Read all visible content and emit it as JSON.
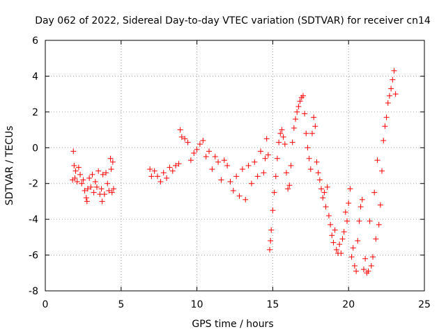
{
  "chart_data": {
    "type": "scatter",
    "title": "Day 062 of 2022, Sidereal Day-to-day VTEC variation (SDTVAR) for receiver cn14",
    "xlabel": "GPS time / hours",
    "ylabel": "SDTVAR / TECUs",
    "xlim": [
      0,
      25
    ],
    "ylim": [
      -8,
      6
    ],
    "xticks": [
      0,
      5,
      10,
      15,
      20,
      25
    ],
    "yticks": [
      -8,
      -6,
      -4,
      -2,
      0,
      2,
      4,
      6
    ],
    "grid": true,
    "marker": "plus",
    "color": "#ff0000",
    "points": [
      [
        1.8,
        -1.8
      ],
      [
        1.85,
        -0.2
      ],
      [
        1.9,
        -1.0
      ],
      [
        1.95,
        -1.7
      ],
      [
        2.0,
        -1.3
      ],
      [
        2.1,
        -1.9
      ],
      [
        2.2,
        -1.1
      ],
      [
        2.3,
        -1.5
      ],
      [
        2.4,
        -2.0
      ],
      [
        2.5,
        -1.8
      ],
      [
        2.6,
        -2.4
      ],
      [
        2.7,
        -2.8
      ],
      [
        2.75,
        -3.0
      ],
      [
        2.8,
        -2.3
      ],
      [
        2.9,
        -1.7
      ],
      [
        3.0,
        -2.2
      ],
      [
        3.1,
        -1.5
      ],
      [
        3.2,
        -2.5
      ],
      [
        3.3,
        -1.9
      ],
      [
        3.4,
        -2.2
      ],
      [
        3.5,
        -1.3
      ],
      [
        3.6,
        -2.6
      ],
      [
        3.7,
        -2.3
      ],
      [
        3.75,
        -3.0
      ],
      [
        3.8,
        -1.5
      ],
      [
        3.9,
        -2.6
      ],
      [
        4.0,
        -1.4
      ],
      [
        4.1,
        -2.0
      ],
      [
        4.2,
        -2.4
      ],
      [
        4.3,
        -0.6
      ],
      [
        4.35,
        -1.2
      ],
      [
        4.4,
        -2.5
      ],
      [
        4.45,
        -0.8
      ],
      [
        4.5,
        -2.3
      ],
      [
        6.9,
        -1.2
      ],
      [
        7.0,
        -1.6
      ],
      [
        7.2,
        -1.3
      ],
      [
        7.4,
        -1.6
      ],
      [
        7.6,
        -1.9
      ],
      [
        7.8,
        -1.4
      ],
      [
        8.0,
        -1.7
      ],
      [
        8.2,
        -1.1
      ],
      [
        8.4,
        -1.3
      ],
      [
        8.6,
        -1.0
      ],
      [
        8.8,
        -0.9
      ],
      [
        8.9,
        1.0
      ],
      [
        9.0,
        0.6
      ],
      [
        9.2,
        0.5
      ],
      [
        9.4,
        0.3
      ],
      [
        9.6,
        -0.7
      ],
      [
        9.8,
        -0.3
      ],
      [
        10.0,
        -0.1
      ],
      [
        10.2,
        0.2
      ],
      [
        10.4,
        0.4
      ],
      [
        10.6,
        -0.5
      ],
      [
        10.8,
        -0.2
      ],
      [
        11.0,
        -1.2
      ],
      [
        11.2,
        -0.5
      ],
      [
        11.4,
        -0.8
      ],
      [
        11.6,
        -1.8
      ],
      [
        11.8,
        -0.7
      ],
      [
        12.0,
        -1.0
      ],
      [
        12.2,
        -1.9
      ],
      [
        12.4,
        -2.4
      ],
      [
        12.6,
        -1.6
      ],
      [
        12.8,
        -2.7
      ],
      [
        13.0,
        -1.2
      ],
      [
        13.2,
        -2.9
      ],
      [
        13.4,
        -1.0
      ],
      [
        13.6,
        -2.0
      ],
      [
        13.8,
        -0.8
      ],
      [
        14.0,
        -1.6
      ],
      [
        14.2,
        -0.2
      ],
      [
        14.4,
        -1.4
      ],
      [
        14.5,
        -0.6
      ],
      [
        14.6,
        0.5
      ],
      [
        14.7,
        -0.4
      ],
      [
        14.8,
        -5.7
      ],
      [
        14.85,
        -5.2
      ],
      [
        14.9,
        -4.6
      ],
      [
        15.0,
        -3.5
      ],
      [
        15.1,
        -2.5
      ],
      [
        15.2,
        -1.6
      ],
      [
        15.3,
        -0.6
      ],
      [
        15.4,
        0.3
      ],
      [
        15.5,
        0.8
      ],
      [
        15.6,
        1.0
      ],
      [
        15.7,
        0.6
      ],
      [
        15.8,
        0.2
      ],
      [
        15.9,
        -1.4
      ],
      [
        16.0,
        -2.3
      ],
      [
        16.1,
        -2.1
      ],
      [
        16.2,
        -1.0
      ],
      [
        16.3,
        0.3
      ],
      [
        16.4,
        1.1
      ],
      [
        16.5,
        1.6
      ],
      [
        16.6,
        2.0
      ],
      [
        16.7,
        2.3
      ],
      [
        16.8,
        2.6
      ],
      [
        16.9,
        2.8
      ],
      [
        17.0,
        2.9
      ],
      [
        17.1,
        1.9
      ],
      [
        17.2,
        0.8
      ],
      [
        17.3,
        0.0
      ],
      [
        17.4,
        -0.6
      ],
      [
        17.5,
        -1.2
      ],
      [
        17.6,
        0.8
      ],
      [
        17.7,
        1.7
      ],
      [
        17.8,
        1.2
      ],
      [
        17.9,
        -0.8
      ],
      [
        18.0,
        -1.4
      ],
      [
        18.1,
        -1.8
      ],
      [
        18.2,
        -2.3
      ],
      [
        18.3,
        -2.8
      ],
      [
        18.4,
        -2.5
      ],
      [
        18.5,
        -3.3
      ],
      [
        18.6,
        -2.2
      ],
      [
        18.7,
        -3.8
      ],
      [
        18.8,
        -4.3
      ],
      [
        18.9,
        -4.9
      ],
      [
        19.0,
        -5.3
      ],
      [
        19.1,
        -4.6
      ],
      [
        19.2,
        -5.7
      ],
      [
        19.3,
        -5.9
      ],
      [
        19.4,
        -5.4
      ],
      [
        19.5,
        -5.9
      ],
      [
        19.6,
        -5.1
      ],
      [
        19.7,
        -4.7
      ],
      [
        19.8,
        -3.6
      ],
      [
        19.9,
        -4.1
      ],
      [
        20.0,
        -3.1
      ],
      [
        20.1,
        -2.3
      ],
      [
        20.2,
        -6.1
      ],
      [
        20.3,
        -5.6
      ],
      [
        20.4,
        -6.6
      ],
      [
        20.5,
        -6.9
      ],
      [
        20.6,
        -5.2
      ],
      [
        20.7,
        -4.1
      ],
      [
        20.8,
        -3.3
      ],
      [
        20.9,
        -2.9
      ],
      [
        21.0,
        -6.8
      ],
      [
        21.1,
        -6.2
      ],
      [
        21.2,
        -7.0
      ],
      [
        21.3,
        -6.9
      ],
      [
        21.4,
        -4.1
      ],
      [
        21.5,
        -6.6
      ],
      [
        21.6,
        -6.1
      ],
      [
        21.7,
        -2.5
      ],
      [
        21.8,
        -5.1
      ],
      [
        21.9,
        -0.7
      ],
      [
        22.0,
        -4.3
      ],
      [
        22.1,
        -3.2
      ],
      [
        22.2,
        -1.3
      ],
      [
        22.3,
        0.4
      ],
      [
        22.4,
        1.2
      ],
      [
        22.5,
        1.7
      ],
      [
        22.6,
        2.5
      ],
      [
        22.7,
        2.9
      ],
      [
        22.8,
        3.3
      ],
      [
        22.9,
        3.8
      ],
      [
        23.0,
        4.3
      ],
      [
        23.1,
        3.0
      ]
    ]
  }
}
